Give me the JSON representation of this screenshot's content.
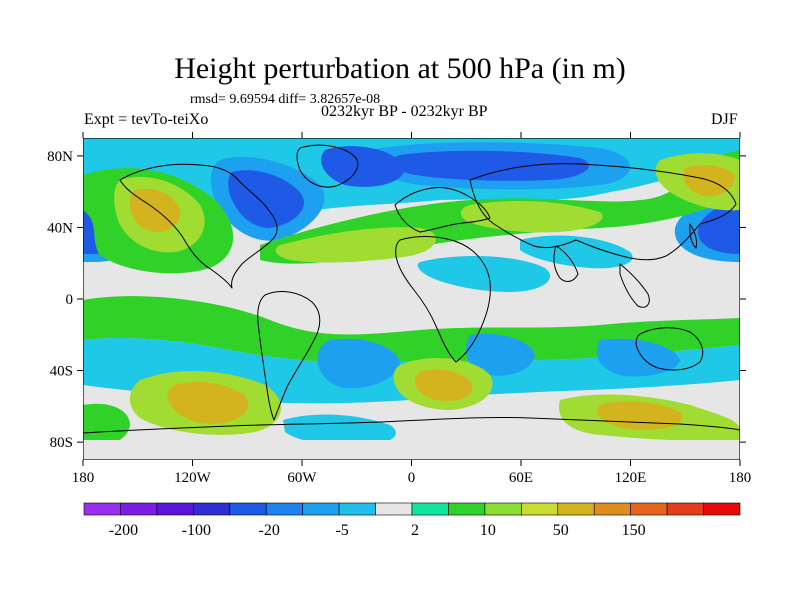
{
  "title": "Height perturbation at 500 hPa (in m)",
  "stats": "rmsd= 9.69594 diff= 3.82657e-08",
  "left_label": "Expt = tevTo-teiXo",
  "center_label": "0232kyr BP - 0232kyr BP",
  "right_label": "DJF",
  "lat_ticks": [
    "80N",
    "40N",
    "0",
    "40S",
    "80S"
  ],
  "lat_values": [
    80,
    40,
    0,
    -40,
    -80
  ],
  "lon_ticks": [
    "180",
    "120W",
    "60W",
    "0",
    "60E",
    "120E",
    "180"
  ],
  "lon_values": [
    -180,
    -120,
    -60,
    0,
    60,
    120,
    180
  ],
  "colorbar": {
    "colors": [
      "#9b2ef0",
      "#7a1ee6",
      "#5a14dc",
      "#2e2ed4",
      "#1e5ae6",
      "#1e82f0",
      "#1ea0f0",
      "#20bee8",
      "#e6e6e6",
      "#10e6a0",
      "#30d22a",
      "#88dc32",
      "#c8dc32",
      "#d4b41e",
      "#e08c1e",
      "#e6641e",
      "#e63c1e",
      "#e60a0a"
    ],
    "labels": [
      "-200",
      "-100",
      "-20",
      "-5",
      "2",
      "10",
      "50",
      "150"
    ]
  },
  "field_palette": {
    "gray": "#e6e6e6",
    "cyan": "#1ec8e6",
    "lightblue": "#1ea0f0",
    "blue": "#1e5ae6",
    "mint": "#10e6a0",
    "green": "#30d22a",
    "lime": "#a0dc32",
    "olive": "#d4b41e",
    "orange": "#e08c1e"
  }
}
